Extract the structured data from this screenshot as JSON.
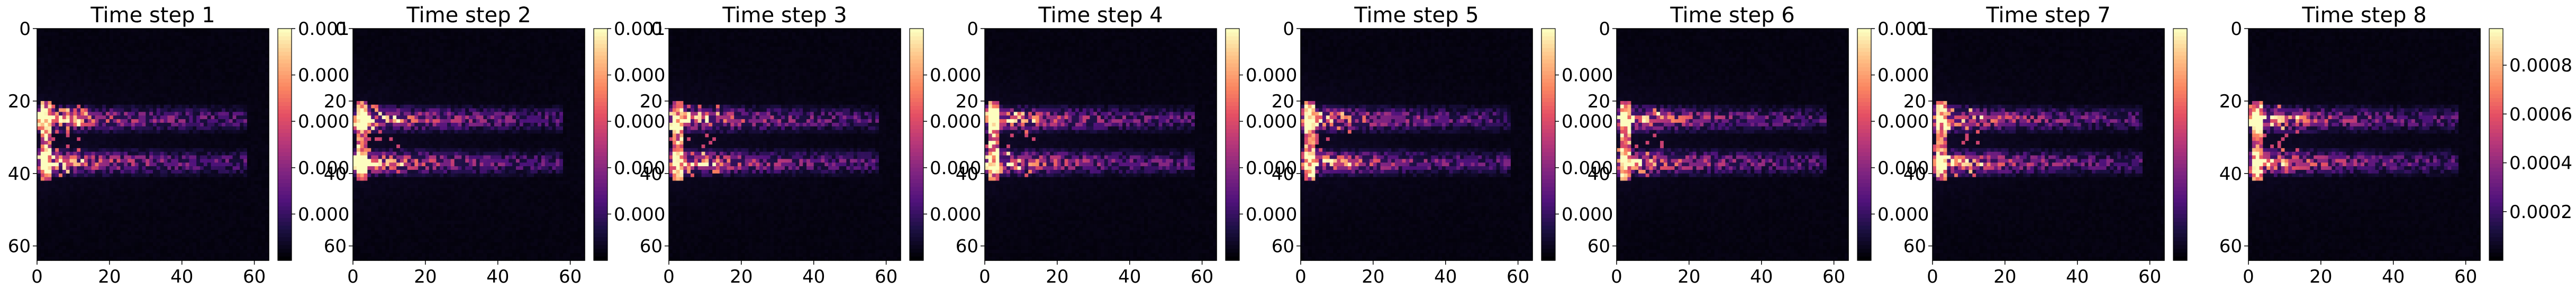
{
  "chart_data": {
    "type": "heatmap",
    "colormap": "magma",
    "colors": {
      "background": "#ffffff",
      "axis": "#000000"
    },
    "grid": false,
    "panels": [
      {
        "title": "Time step 1",
        "x_ticks": [
          "0",
          "20",
          "40",
          "60"
        ],
        "y_ticks": [
          "0",
          "20",
          "40",
          "60"
        ],
        "xlim": [
          0,
          64
        ],
        "ylim": [
          64,
          0
        ],
        "colorbar": {
          "range": [
            0,
            0.001
          ],
          "tick_values": [
            0.0002,
            0.0004,
            0.0006,
            0.0008,
            0.001
          ],
          "tick_labels": [
            "0.000",
            "0.000",
            "0.000",
            "0.000",
            "0.001"
          ]
        }
      },
      {
        "title": "Time step 2",
        "x_ticks": [
          "0",
          "20",
          "40",
          "60"
        ],
        "y_ticks": [
          "0",
          "20",
          "40",
          "60"
        ],
        "xlim": [
          0,
          64
        ],
        "ylim": [
          64,
          0
        ],
        "colorbar": {
          "range": [
            0,
            0.001
          ],
          "tick_values": [
            0.0002,
            0.0004,
            0.0006,
            0.0008,
            0.001
          ],
          "tick_labels": [
            "0.000",
            "0.000",
            "0.000",
            "0.000",
            "0.001"
          ]
        }
      },
      {
        "title": "Time step 3",
        "x_ticks": [
          "0",
          "20",
          "40",
          "60"
        ],
        "y_ticks": [
          "0",
          "20",
          "40",
          "60"
        ],
        "xlim": [
          0,
          64
        ],
        "ylim": [
          64,
          0
        ],
        "colorbar": {
          "range": [
            0,
            0.001
          ],
          "tick_values": [
            0.0002,
            0.0004,
            0.0006,
            0.0008
          ],
          "tick_labels": [
            "0.000",
            "0.000",
            "0.000",
            "0.000"
          ]
        }
      },
      {
        "title": "Time step 4",
        "x_ticks": [
          "0",
          "20",
          "40",
          "60"
        ],
        "y_ticks": [
          "0",
          "20",
          "40",
          "60"
        ],
        "xlim": [
          0,
          64
        ],
        "ylim": [
          64,
          0
        ],
        "colorbar": {
          "range": [
            0,
            0.001
          ],
          "tick_values": [
            0.0002,
            0.0004,
            0.0006,
            0.0008
          ],
          "tick_labels": [
            "0.000",
            "0.000",
            "0.000",
            "0.000"
          ]
        }
      },
      {
        "title": "Time step 5",
        "x_ticks": [
          "0",
          "20",
          "40",
          "60"
        ],
        "y_ticks": [
          "0",
          "20",
          "40",
          "60"
        ],
        "xlim": [
          0,
          64
        ],
        "ylim": [
          64,
          0
        ],
        "colorbar": {
          "range": [
            0,
            0.001
          ],
          "tick_values": [
            0.0002,
            0.0004,
            0.0006,
            0.0008
          ],
          "tick_labels": [
            "0.000",
            "0.000",
            "0.000",
            "0.000"
          ]
        }
      },
      {
        "title": "Time step 6",
        "x_ticks": [
          "0",
          "20",
          "40",
          "60"
        ],
        "y_ticks": [
          "0",
          "20",
          "40",
          "60"
        ],
        "xlim": [
          0,
          64
        ],
        "ylim": [
          64,
          0
        ],
        "colorbar": {
          "range": [
            0,
            0.001
          ],
          "tick_values": [
            0.0002,
            0.0004,
            0.0006,
            0.0008,
            0.001
          ],
          "tick_labels": [
            "0.000",
            "0.000",
            "0.000",
            "0.000",
            "0.001"
          ]
        }
      },
      {
        "title": "Time step 7",
        "x_ticks": [
          "0",
          "20",
          "40",
          "60"
        ],
        "y_ticks": [
          "0",
          "20",
          "40",
          "60"
        ],
        "xlim": [
          0,
          64
        ],
        "ylim": [
          64,
          0
        ],
        "colorbar": {
          "range": [
            0,
            0.001
          ],
          "tick_values": [],
          "tick_labels": []
        }
      },
      {
        "title": "Time step 8",
        "x_ticks": [
          "0",
          "20",
          "40",
          "60"
        ],
        "y_ticks": [
          "0",
          "20",
          "40",
          "60"
        ],
        "xlim": [
          0,
          64
        ],
        "ylim": [
          64,
          0
        ],
        "colorbar": {
          "range": [
            0,
            0.00095
          ],
          "tick_values": [
            0.0002,
            0.0004,
            0.0006,
            0.0008
          ],
          "tick_labels": [
            "0.0002",
            "0.0004",
            "0.0006",
            "0.0008"
          ]
        }
      }
    ]
  }
}
